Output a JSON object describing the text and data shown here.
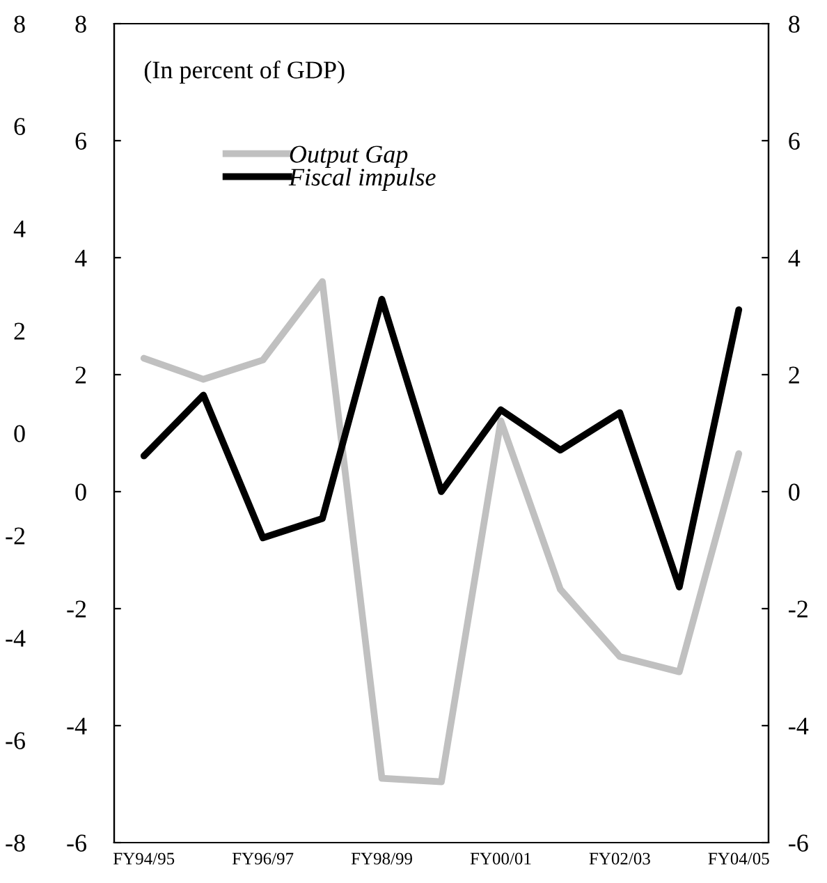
{
  "chart_data": {
    "type": "line",
    "categories": [
      "FY94/95",
      null,
      "FY96/97",
      null,
      "FY98/99",
      null,
      "FY00/01",
      null,
      "FY02/03",
      null,
      "FY04/05"
    ],
    "series": [
      {
        "name": "Output Gap",
        "color": "#c0c0c0",
        "values": [
          2.28,
          1.92,
          2.25,
          3.59,
          -4.9,
          -4.96,
          1.21,
          -1.67,
          -2.82,
          -3.08,
          0.65
        ]
      },
      {
        "name": "Fiscal impulse",
        "color": "#000000",
        "values": [
          0.61,
          1.65,
          -0.79,
          -0.46,
          3.29,
          0.0,
          1.4,
          0.71,
          1.35,
          -1.63,
          3.11
        ]
      }
    ],
    "ylim": [
      -6,
      8
    ],
    "yticks": [
      -6,
      -4,
      -2,
      0,
      2,
      4,
      6,
      8
    ],
    "y2lim": [
      -6,
      8
    ],
    "y2ticks": [
      -6,
      -4,
      -2,
      0,
      2,
      4,
      6,
      8
    ],
    "y3lim": [
      -8,
      8
    ],
    "y3ticks": [
      -8,
      -6,
      -4,
      -2,
      0,
      2,
      4,
      6,
      8
    ],
    "annotations": [
      "(In percent of GDP)"
    ],
    "legend": "top left",
    "grid": false,
    "marker": "none",
    "line_style": "solid"
  }
}
